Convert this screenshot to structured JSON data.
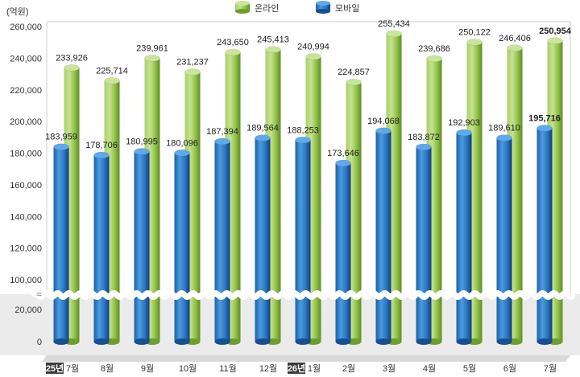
{
  "colors": {
    "online": "#8fc046",
    "mobile": "#2f7fc8",
    "plot_bg": "#ffffff",
    "lower_band": "#ebebeb",
    "axis_text": "#333333",
    "year_badge": "#3a3a3a"
  },
  "chart_data": {
    "type": "bar",
    "unit_label": "(억원)",
    "categories": [
      "7월",
      "8월",
      "9월",
      "10월",
      "11월",
      "12월",
      "1월",
      "2월",
      "3월",
      "4월",
      "5월",
      "6월",
      "7월"
    ],
    "year_badges": [
      "25년",
      "",
      "",
      "",
      "",
      "",
      "26년",
      "",
      "",
      "",
      "",
      "",
      ""
    ],
    "series": [
      {
        "name": "온라인",
        "values": [
          233926,
          225714,
          239961,
          231237,
          243650,
          245413,
          240994,
          224857,
          255434,
          239686,
          250122,
          246406,
          250954
        ],
        "labels": [
          "233,926",
          "225,714",
          "239,961",
          "231,237",
          "243,650",
          "245,413",
          "240,994",
          "224,857",
          "255,434",
          "239,686",
          "250,122",
          "246,406",
          "250,954"
        ]
      },
      {
        "name": "모바일",
        "values": [
          183959,
          178706,
          180995,
          180096,
          187394,
          189564,
          188253,
          173646,
          194068,
          183872,
          192903,
          189610,
          195716
        ],
        "labels": [
          "183,959",
          "178,706",
          "180,995",
          "180,096",
          "187,394",
          "189,564",
          "188,253",
          "173,646",
          "194,068",
          "183,872",
          "192,903",
          "189,610",
          "195,716"
        ]
      }
    ],
    "yticks_upper": [
      "260,000",
      "240,000",
      "220,000",
      "200,000",
      "180,000",
      "160,000",
      "140,000",
      "120,000",
      "100,000"
    ],
    "yticks_lower": [
      "20,000",
      "0"
    ],
    "ylim_upper": [
      100000,
      260000
    ],
    "ylim_lower": [
      0,
      20000
    ],
    "axis_break": true,
    "legend_position": "top-center",
    "highlight_last": true
  }
}
